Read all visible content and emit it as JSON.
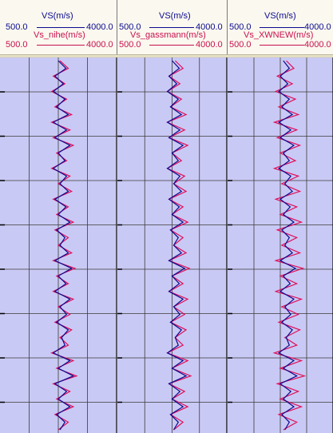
{
  "colors": {
    "blue": "#0a0a8f",
    "red": "#e0105a",
    "plot_bg": "#c9c9f5",
    "grid": "#3a3a3a"
  },
  "tracks": [
    {
      "top_curve": "VS(m/s)",
      "top_min": "500.0",
      "top_max": "4000.0",
      "bottom_curve": "Vs_nihe(m/s)",
      "bottom_min": "500.0",
      "bottom_max": "4000.0"
    },
    {
      "top_curve": "VS(m/s)",
      "top_min": "500.0",
      "top_max": "4000.0",
      "bottom_curve": "Vs_gassmann(m/s)",
      "bottom_min": "500.0",
      "bottom_max": "4000.0"
    },
    {
      "top_curve": "VS(m/s)",
      "top_min": "500.0",
      "top_max": "4000.0",
      "bottom_curve": "Vs_XWNEW(m/s)",
      "bottom_min": "500.0",
      "bottom_max": "4000.0"
    }
  ],
  "chart_data": [
    {
      "type": "line",
      "xlim": [
        500,
        4000
      ],
      "grid": true,
      "series": [
        {
          "name": "VS(m/s)",
          "color": "#0a0a8f",
          "x": [
            2250,
            2480,
            2150,
            2400,
            2100,
            2450,
            2200,
            2550,
            2100,
            2500,
            2150,
            2600,
            2250,
            2450,
            2100,
            2500,
            2300,
            2550,
            2150,
            2480,
            2250,
            2600,
            2200,
            2450,
            2300,
            2550,
            2150,
            2650,
            2250,
            2480,
            2150,
            2600,
            2300,
            2500,
            2200,
            2550,
            2350,
            2450,
            2100,
            2600,
            2250,
            2700,
            2150,
            2500,
            2250,
            2600,
            2200,
            2450,
            2300
          ],
          "y": [
            0,
            10,
            20,
            30,
            40,
            50,
            60,
            70,
            80,
            90,
            100,
            110,
            120,
            130,
            140,
            150,
            160,
            170,
            180,
            190,
            200,
            210,
            220,
            230,
            240,
            250,
            260,
            270,
            280,
            290,
            300,
            310,
            320,
            330,
            340,
            350,
            360,
            370,
            380,
            390,
            400,
            410,
            420,
            430,
            440,
            450,
            460,
            470,
            480
          ]
        },
        {
          "name": "Vs_nihe(m/s)",
          "color": "#e0105a",
          "x": [
            2300,
            2550,
            2100,
            2450,
            2050,
            2500,
            2150,
            2650,
            2050,
            2600,
            2100,
            2700,
            2200,
            2500,
            2050,
            2600,
            2250,
            2650,
            2100,
            2550,
            2200,
            2700,
            2150,
            2550,
            2250,
            2650,
            2100,
            2750,
            2200,
            2550,
            2100,
            2700,
            2250,
            2600,
            2150,
            2650,
            2300,
            2550,
            2050,
            2700,
            2200,
            2800,
            2100,
            2600,
            2200,
            2700,
            2150,
            2550,
            2250
          ],
          "y": [
            0,
            10,
            20,
            30,
            40,
            50,
            60,
            70,
            80,
            90,
            100,
            110,
            120,
            130,
            140,
            150,
            160,
            170,
            180,
            190,
            200,
            210,
            220,
            230,
            240,
            250,
            260,
            270,
            280,
            290,
            300,
            310,
            320,
            330,
            340,
            350,
            360,
            370,
            380,
            390,
            400,
            410,
            420,
            430,
            440,
            450,
            460,
            470,
            480
          ]
        }
      ]
    },
    {
      "type": "line",
      "xlim": [
        500,
        4000
      ],
      "grid": true,
      "series": [
        {
          "name": "VS(m/s)",
          "color": "#0a0a8f",
          "x": [
            2250,
            2480,
            2150,
            2400,
            2100,
            2450,
            2200,
            2550,
            2100,
            2500,
            2150,
            2600,
            2250,
            2450,
            2100,
            2500,
            2300,
            2550,
            2150,
            2480,
            2250,
            2600,
            2200,
            2450,
            2300,
            2550,
            2150,
            2650,
            2250,
            2480,
            2150,
            2600,
            2300,
            2500,
            2200,
            2550,
            2350,
            2450,
            2100,
            2600,
            2250,
            2700,
            2150,
            2500,
            2250,
            2600,
            2200,
            2450,
            2300
          ],
          "y": [
            0,
            10,
            20,
            30,
            40,
            50,
            60,
            70,
            80,
            90,
            100,
            110,
            120,
            130,
            140,
            150,
            160,
            170,
            180,
            190,
            200,
            210,
            220,
            230,
            240,
            250,
            260,
            270,
            280,
            290,
            300,
            310,
            320,
            330,
            340,
            350,
            360,
            370,
            380,
            390,
            400,
            410,
            420,
            430,
            440,
            450,
            460,
            470,
            480
          ]
        },
        {
          "name": "Vs_gassmann(m/s)",
          "color": "#e0105a",
          "x": [
            2350,
            2600,
            2150,
            2500,
            2100,
            2550,
            2200,
            2700,
            2100,
            2650,
            2150,
            2750,
            2250,
            2550,
            2100,
            2650,
            2300,
            2700,
            2150,
            2600,
            2250,
            2750,
            2200,
            2600,
            2300,
            2700,
            2150,
            2800,
            2250,
            2600,
            2150,
            2750,
            2300,
            2650,
            2200,
            2700,
            2350,
            2600,
            2100,
            2750,
            2250,
            2850,
            2150,
            2650,
            2250,
            2750,
            2200,
            2600,
            2300
          ],
          "y": [
            0,
            10,
            20,
            30,
            40,
            50,
            60,
            70,
            80,
            90,
            100,
            110,
            120,
            130,
            140,
            150,
            160,
            170,
            180,
            190,
            200,
            210,
            220,
            230,
            240,
            250,
            260,
            270,
            280,
            290,
            300,
            310,
            320,
            330,
            340,
            350,
            360,
            370,
            380,
            390,
            400,
            410,
            420,
            430,
            440,
            450,
            460,
            470,
            480
          ]
        }
      ]
    },
    {
      "type": "line",
      "xlim": [
        500,
        4000
      ],
      "grid": true,
      "series": [
        {
          "name": "VS(m/s)",
          "color": "#0a0a8f",
          "x": [
            2350,
            2550,
            2250,
            2500,
            2200,
            2550,
            2300,
            2650,
            2200,
            2600,
            2250,
            2700,
            2350,
            2550,
            2200,
            2600,
            2400,
            2650,
            2250,
            2580,
            2350,
            2700,
            2300,
            2550,
            2400,
            2650,
            2250,
            2750,
            2350,
            2580,
            2250,
            2700,
            2400,
            2600,
            2300,
            2650,
            2450,
            2550,
            2200,
            2700,
            2350,
            2800,
            2250,
            2600,
            2350,
            2700,
            2300,
            2550,
            2400
          ],
          "y": [
            0,
            10,
            20,
            30,
            40,
            50,
            60,
            70,
            80,
            90,
            100,
            110,
            120,
            130,
            140,
            150,
            160,
            170,
            180,
            190,
            200,
            210,
            220,
            230,
            240,
            250,
            260,
            270,
            280,
            290,
            300,
            310,
            320,
            330,
            340,
            350,
            360,
            370,
            380,
            390,
            400,
            410,
            420,
            430,
            440,
            450,
            460,
            470,
            480
          ]
        },
        {
          "name": "Vs_XWNEW(m/s)",
          "color": "#e0105a",
          "x": [
            2450,
            2700,
            2150,
            2650,
            2100,
            2750,
            2200,
            2850,
            2050,
            2800,
            2150,
            2900,
            2250,
            2750,
            2050,
            2850,
            2300,
            2900,
            2100,
            2800,
            2250,
            2950,
            2150,
            2800,
            2300,
            2900,
            2100,
            3000,
            2250,
            2800,
            2100,
            2950,
            2300,
            2850,
            2200,
            2900,
            2400,
            2800,
            2050,
            2950,
            2250,
            3050,
            2150,
            2850,
            2250,
            2950,
            2200,
            2800,
            2350
          ],
          "y": [
            0,
            10,
            20,
            30,
            40,
            50,
            60,
            70,
            80,
            90,
            100,
            110,
            120,
            130,
            140,
            150,
            160,
            170,
            180,
            190,
            200,
            210,
            220,
            230,
            240,
            250,
            260,
            270,
            280,
            290,
            300,
            310,
            320,
            330,
            340,
            350,
            360,
            370,
            380,
            390,
            400,
            410,
            420,
            430,
            440,
            450,
            460,
            470,
            480
          ]
        }
      ]
    }
  ]
}
